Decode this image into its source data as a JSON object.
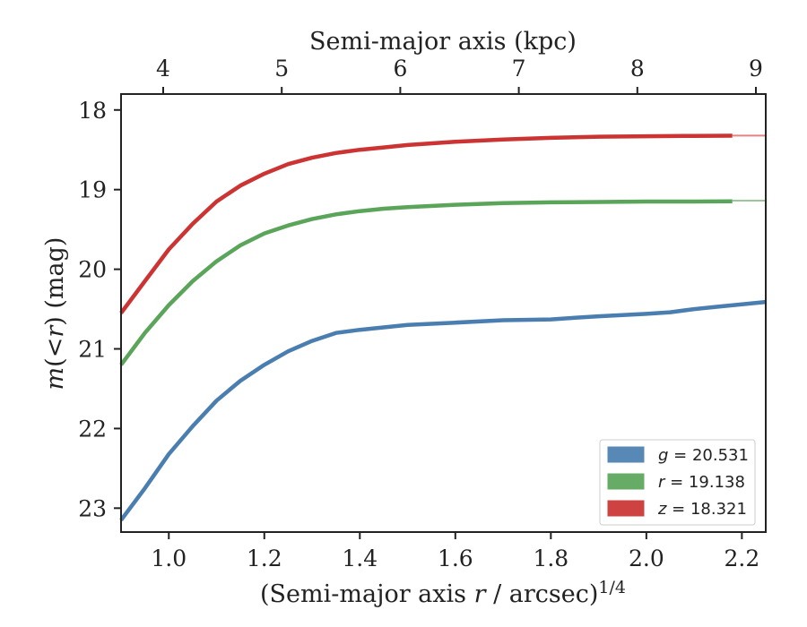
{
  "chart_data": {
    "type": "line",
    "xlabel_main": "(Semi-major axis ",
    "xlabel_var": "r",
    "xlabel_tail": " / arcsec)",
    "xlabel_exp": "1/4",
    "ylabel_m": "m",
    "ylabel_open": "(<",
    "ylabel_r": "r",
    "ylabel_close": ") (mag)",
    "top_xlabel": "Semi-major axis (kpc)",
    "xlim": [
      0.9,
      2.25
    ],
    "ylim": [
      23.3,
      17.8
    ],
    "y_inverted": true,
    "x_ticks": [
      "1.0",
      "1.2",
      "1.4",
      "1.6",
      "1.8",
      "2.0",
      "2.2"
    ],
    "x_tick_values": [
      1.0,
      1.2,
      1.4,
      1.6,
      1.8,
      2.0,
      2.2
    ],
    "y_ticks": [
      "18",
      "19",
      "20",
      "21",
      "22",
      "23"
    ],
    "y_tick_values": [
      18,
      19,
      20,
      21,
      22,
      23
    ],
    "top_ticks": [
      "4",
      "5",
      "6",
      "7",
      "8",
      "9"
    ],
    "top_tick_values": [
      4,
      5,
      6,
      7,
      8,
      9
    ],
    "legend_position": "lower-right",
    "grid": false,
    "series": [
      {
        "name": "g = 20.531",
        "legend_var": "g",
        "legend_value": "= 20.531",
        "color": "#4a7eb0",
        "asymptote": 20.531,
        "x": [
          0.9,
          0.95,
          1.0,
          1.05,
          1.1,
          1.15,
          1.2,
          1.25,
          1.3,
          1.35,
          1.4,
          1.45,
          1.5,
          1.6,
          1.7,
          1.8,
          1.85,
          1.9,
          2.0,
          2.05,
          2.1,
          2.15,
          2.2,
          2.25
        ],
        "y": [
          23.15,
          22.75,
          22.32,
          21.97,
          21.65,
          21.4,
          21.2,
          21.03,
          20.9,
          20.8,
          20.76,
          20.73,
          20.7,
          20.67,
          20.64,
          20.63,
          20.61,
          20.59,
          20.56,
          20.54,
          20.5,
          20.47,
          20.44,
          20.41
        ]
      },
      {
        "name": "r = 19.138",
        "legend_var": "r",
        "legend_value": "= 19.138",
        "color": "#5aa55a",
        "asymptote": 19.138,
        "x": [
          0.9,
          0.95,
          1.0,
          1.05,
          1.1,
          1.15,
          1.2,
          1.25,
          1.3,
          1.35,
          1.4,
          1.45,
          1.5,
          1.6,
          1.7,
          1.8,
          1.9,
          2.0,
          2.1,
          2.18
        ],
        "y": [
          21.2,
          20.8,
          20.45,
          20.15,
          19.9,
          19.7,
          19.55,
          19.45,
          19.37,
          19.31,
          19.27,
          19.24,
          19.22,
          19.19,
          19.17,
          19.16,
          19.155,
          19.15,
          19.15,
          19.148
        ]
      },
      {
        "name": "z = 18.321",
        "legend_var": "z",
        "legend_value": "= 18.321",
        "color": "#cc3333",
        "asymptote": 18.321,
        "x": [
          0.9,
          0.95,
          1.0,
          1.05,
          1.1,
          1.15,
          1.2,
          1.25,
          1.3,
          1.35,
          1.4,
          1.45,
          1.5,
          1.6,
          1.7,
          1.8,
          1.9,
          2.0,
          2.1,
          2.18
        ],
        "y": [
          20.55,
          20.15,
          19.75,
          19.43,
          19.15,
          18.95,
          18.8,
          18.68,
          18.6,
          18.54,
          18.5,
          18.47,
          18.44,
          18.4,
          18.37,
          18.35,
          18.335,
          18.33,
          18.325,
          18.323
        ]
      }
    ]
  }
}
